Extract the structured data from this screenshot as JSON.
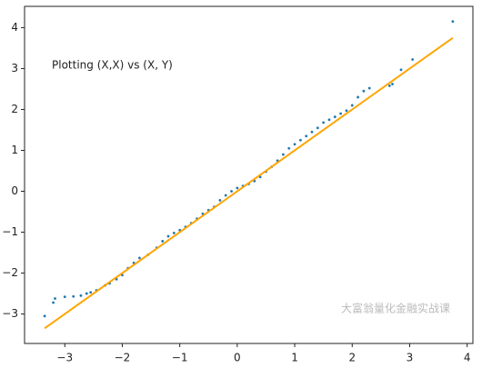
{
  "chart_data": {
    "type": "scatter",
    "annotations": [
      "Plotting (X,X) vs (X, Y)",
      "大富翁量化金融实战课"
    ],
    "xlim": [
      -3.7,
      4.1
    ],
    "ylim": [
      -3.72,
      4.52
    ],
    "xticks": [
      {
        "value": -3,
        "label": "−3"
      },
      {
        "value": -2,
        "label": "−2"
      },
      {
        "value": -1,
        "label": "−1"
      },
      0,
      1,
      2,
      3,
      4
    ],
    "yticks": [
      {
        "value": -3,
        "label": "−3"
      },
      {
        "value": -2,
        "label": "−2"
      },
      {
        "value": -1,
        "label": "−1"
      },
      0,
      1,
      2,
      3,
      4
    ],
    "series": [
      {
        "kind": "points",
        "color": "#1f77b4",
        "x": [
          -3.35,
          -3.2,
          -3.17,
          -3.0,
          -2.85,
          -2.72,
          -2.62,
          -2.55,
          -2.45,
          -2.3,
          -2.22,
          -2.1,
          -2.0,
          -1.9,
          -1.8,
          -1.7,
          -1.55,
          -1.4,
          -1.3,
          -1.2,
          -1.1,
          -1.0,
          -0.9,
          -0.8,
          -0.7,
          -0.6,
          -0.5,
          -0.4,
          -0.3,
          -0.2,
          -0.1,
          0.0,
          0.1,
          0.2,
          0.3,
          0.4,
          0.5,
          0.6,
          0.7,
          0.8,
          0.9,
          1.0,
          1.1,
          1.2,
          1.3,
          1.4,
          1.5,
          1.6,
          1.7,
          1.8,
          1.9,
          2.0,
          2.1,
          2.2,
          2.3,
          2.65,
          2.7,
          2.85,
          3.05,
          3.75
        ],
        "y": [
          -3.05,
          -2.72,
          -2.62,
          -2.58,
          -2.57,
          -2.55,
          -2.5,
          -2.47,
          -2.42,
          -2.3,
          -2.25,
          -2.15,
          -2.05,
          -1.88,
          -1.75,
          -1.63,
          -1.55,
          -1.38,
          -1.22,
          -1.1,
          -1.02,
          -0.95,
          -0.87,
          -0.78,
          -0.67,
          -0.55,
          -0.46,
          -0.38,
          -0.22,
          -0.1,
          0.0,
          0.08,
          0.13,
          0.18,
          0.25,
          0.35,
          0.48,
          0.6,
          0.75,
          0.9,
          1.05,
          1.15,
          1.25,
          1.35,
          1.45,
          1.55,
          1.68,
          1.75,
          1.82,
          1.9,
          1.97,
          2.1,
          2.3,
          2.45,
          2.52,
          2.58,
          2.62,
          2.97,
          3.22,
          4.15
        ]
      },
      {
        "kind": "line",
        "color": "#ffa500",
        "x": [
          -3.35,
          3.75
        ],
        "y": [
          -3.35,
          3.75
        ]
      }
    ]
  }
}
